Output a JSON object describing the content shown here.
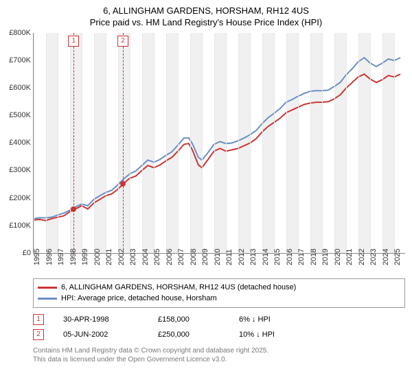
{
  "title": {
    "line1": "6, ALLINGHAM GARDENS, HORSHAM, RH12 4US",
    "line2": "Price paid vs. HM Land Registry's House Price Index (HPI)",
    "fontsize": 13
  },
  "chart": {
    "type": "line",
    "background_color": "#ffffff",
    "band_color": "#f0f0f0",
    "grid_color": "#e8e8e8",
    "axis_color": "#888888",
    "x": {
      "min": 1995,
      "max": 2025.9,
      "ticks": [
        1995,
        1996,
        1997,
        1998,
        1999,
        2000,
        2001,
        2002,
        2003,
        2004,
        2005,
        2006,
        2007,
        2008,
        2009,
        2010,
        2011,
        2012,
        2013,
        2014,
        2015,
        2016,
        2017,
        2018,
        2019,
        2020,
        2021,
        2022,
        2023,
        2024,
        2025
      ],
      "label_fontsize": 11,
      "label_rotation": -90
    },
    "y": {
      "min": 0,
      "max": 800000,
      "ticks": [
        0,
        100000,
        200000,
        300000,
        400000,
        500000,
        600000,
        700000,
        800000
      ],
      "tick_labels": [
        "£0",
        "£100K",
        "£200K",
        "£300K",
        "£400K",
        "£500K",
        "£600K",
        "£700K",
        "£800K"
      ],
      "label_fontsize": 11
    },
    "series": [
      {
        "name": "price_paid",
        "label": "6, ALLINGHAM GARDENS, HORSHAM, RH12 4US (detached house)",
        "color": "#cc3333",
        "line_width": 2,
        "data": [
          [
            1995.0,
            120000
          ],
          [
            1995.5,
            122000
          ],
          [
            1996.0,
            118000
          ],
          [
            1996.5,
            125000
          ],
          [
            1997.0,
            130000
          ],
          [
            1997.5,
            135000
          ],
          [
            1998.0,
            150000
          ],
          [
            1998.33,
            158000
          ],
          [
            1998.7,
            165000
          ],
          [
            1999.0,
            172000
          ],
          [
            1999.5,
            160000
          ],
          [
            2000.0,
            182000
          ],
          [
            2000.5,
            195000
          ],
          [
            2001.0,
            208000
          ],
          [
            2001.5,
            215000
          ],
          [
            2002.0,
            232000
          ],
          [
            2002.43,
            250000
          ],
          [
            2002.8,
            265000
          ],
          [
            2003.0,
            272000
          ],
          [
            2003.5,
            280000
          ],
          [
            2004.0,
            300000
          ],
          [
            2004.5,
            318000
          ],
          [
            2005.0,
            310000
          ],
          [
            2005.5,
            320000
          ],
          [
            2006.0,
            335000
          ],
          [
            2006.5,
            348000
          ],
          [
            2007.0,
            370000
          ],
          [
            2007.5,
            395000
          ],
          [
            2007.9,
            398000
          ],
          [
            2008.2,
            375000
          ],
          [
            2008.7,
            320000
          ],
          [
            2009.0,
            310000
          ],
          [
            2009.5,
            340000
          ],
          [
            2010.0,
            370000
          ],
          [
            2010.5,
            380000
          ],
          [
            2011.0,
            370000
          ],
          [
            2011.5,
            375000
          ],
          [
            2012.0,
            380000
          ],
          [
            2012.5,
            390000
          ],
          [
            2013.0,
            400000
          ],
          [
            2013.5,
            415000
          ],
          [
            2014.0,
            440000
          ],
          [
            2014.5,
            460000
          ],
          [
            2015.0,
            475000
          ],
          [
            2015.5,
            490000
          ],
          [
            2016.0,
            510000
          ],
          [
            2016.5,
            520000
          ],
          [
            2017.0,
            530000
          ],
          [
            2017.5,
            540000
          ],
          [
            2018.0,
            545000
          ],
          [
            2018.5,
            548000
          ],
          [
            2019.0,
            548000
          ],
          [
            2019.5,
            550000
          ],
          [
            2020.0,
            560000
          ],
          [
            2020.5,
            575000
          ],
          [
            2021.0,
            600000
          ],
          [
            2021.5,
            620000
          ],
          [
            2022.0,
            640000
          ],
          [
            2022.5,
            650000
          ],
          [
            2023.0,
            632000
          ],
          [
            2023.5,
            620000
          ],
          [
            2024.0,
            630000
          ],
          [
            2024.5,
            645000
          ],
          [
            2025.0,
            640000
          ],
          [
            2025.5,
            650000
          ]
        ]
      },
      {
        "name": "hpi",
        "label": "HPI: Average price, detached house, Horsham",
        "color": "#6a8fc7",
        "line_width": 2,
        "data": [
          [
            1995.0,
            125000
          ],
          [
            1995.5,
            128000
          ],
          [
            1996.0,
            128000
          ],
          [
            1996.5,
            130000
          ],
          [
            1997.0,
            138000
          ],
          [
            1997.5,
            145000
          ],
          [
            1998.0,
            155000
          ],
          [
            1998.5,
            168000
          ],
          [
            1999.0,
            178000
          ],
          [
            1999.5,
            172000
          ],
          [
            2000.0,
            195000
          ],
          [
            2000.5,
            208000
          ],
          [
            2001.0,
            220000
          ],
          [
            2001.5,
            228000
          ],
          [
            2002.0,
            248000
          ],
          [
            2002.5,
            270000
          ],
          [
            2003.0,
            288000
          ],
          [
            2003.5,
            298000
          ],
          [
            2004.0,
            318000
          ],
          [
            2004.5,
            338000
          ],
          [
            2005.0,
            330000
          ],
          [
            2005.5,
            340000
          ],
          [
            2006.0,
            355000
          ],
          [
            2006.5,
            368000
          ],
          [
            2007.0,
            392000
          ],
          [
            2007.5,
            418000
          ],
          [
            2007.9,
            418000
          ],
          [
            2008.2,
            398000
          ],
          [
            2008.7,
            348000
          ],
          [
            2009.0,
            338000
          ],
          [
            2009.5,
            365000
          ],
          [
            2010.0,
            395000
          ],
          [
            2010.5,
            405000
          ],
          [
            2011.0,
            398000
          ],
          [
            2011.5,
            400000
          ],
          [
            2012.0,
            408000
          ],
          [
            2012.5,
            418000
          ],
          [
            2013.0,
            430000
          ],
          [
            2013.5,
            445000
          ],
          [
            2014.0,
            470000
          ],
          [
            2014.5,
            492000
          ],
          [
            2015.0,
            508000
          ],
          [
            2015.5,
            525000
          ],
          [
            2016.0,
            548000
          ],
          [
            2016.5,
            558000
          ],
          [
            2017.0,
            570000
          ],
          [
            2017.5,
            580000
          ],
          [
            2018.0,
            588000
          ],
          [
            2018.5,
            590000
          ],
          [
            2019.0,
            590000
          ],
          [
            2019.5,
            592000
          ],
          [
            2020.0,
            605000
          ],
          [
            2020.5,
            620000
          ],
          [
            2021.0,
            648000
          ],
          [
            2021.5,
            670000
          ],
          [
            2022.0,
            695000
          ],
          [
            2022.5,
            710000
          ],
          [
            2023.0,
            690000
          ],
          [
            2023.5,
            678000
          ],
          [
            2024.0,
            690000
          ],
          [
            2024.5,
            705000
          ],
          [
            2025.0,
            700000
          ],
          [
            2025.5,
            710000
          ]
        ]
      }
    ],
    "sale_markers": [
      {
        "n": "1",
        "x": 1998.33,
        "y": 158000
      },
      {
        "n": "2",
        "x": 2002.43,
        "y": 250000
      }
    ],
    "marker_color": "#cc3333"
  },
  "legend": {
    "border_color": "#999999",
    "fontsize": 11
  },
  "events": [
    {
      "n": "1",
      "date": "30-APR-1998",
      "price": "£158,000",
      "delta": "6% ↓ HPI"
    },
    {
      "n": "2",
      "date": "05-JUN-2002",
      "price": "£250,000",
      "delta": "10% ↓ HPI"
    }
  ],
  "footer": {
    "line1": "Contains HM Land Registry data © Crown copyright and database right 2025.",
    "line2": "This data is licensed under the Open Government Licence v3.0.",
    "color": "#777777",
    "fontsize": 10
  }
}
